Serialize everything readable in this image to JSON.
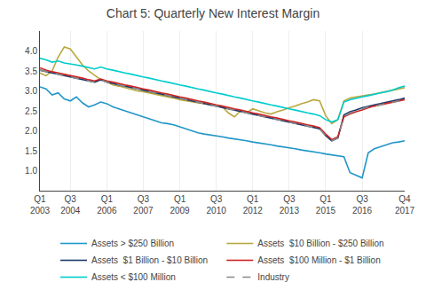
{
  "chart_data": {
    "type": "line",
    "title": "Chart 5: Quarterly New Interest Margin",
    "categories": [
      "Q1\n2003",
      null,
      null,
      null,
      null,
      "Q3\n2004",
      null,
      null,
      null,
      null,
      null,
      "Q1\n2006",
      null,
      null,
      null,
      null,
      null,
      "Q3\n2007",
      null,
      null,
      null,
      null,
      null,
      "Q1\n2009",
      null,
      null,
      null,
      null,
      null,
      "Q3\n2010",
      null,
      null,
      null,
      null,
      null,
      "Q1\n2012",
      null,
      null,
      null,
      null,
      null,
      "Q3\n2013",
      null,
      null,
      null,
      null,
      null,
      "Q1\n2015",
      null,
      null,
      null,
      null,
      null,
      "Q3\n2016",
      null,
      null,
      null,
      null,
      null,
      null,
      "Q4\n2017"
    ],
    "series": [
      {
        "name": "Assets > $250 Billion",
        "color": "#2196c8",
        "line_style": "solid",
        "values": [
          3.1,
          3.05,
          2.9,
          2.95,
          2.8,
          2.75,
          2.85,
          2.7,
          2.6,
          2.65,
          2.72,
          2.68,
          2.6,
          2.55,
          2.5,
          2.45,
          2.4,
          2.35,
          2.3,
          2.25,
          2.2,
          2.18,
          2.15,
          2.1,
          2.05,
          2.0,
          1.95,
          1.92,
          1.9,
          1.88,
          1.85,
          1.82,
          1.8,
          1.78,
          1.75,
          1.72,
          1.7,
          1.68,
          1.65,
          1.62,
          1.6,
          1.58,
          1.55,
          1.52,
          1.5,
          1.48,
          1.45,
          1.42,
          1.4,
          1.38,
          1.35,
          0.95,
          0.88,
          0.82,
          1.45,
          1.55,
          1.6,
          1.65,
          1.7,
          1.72,
          1.75
        ]
      },
      {
        "name": "Assets  $10 Billion - $250 Billion",
        "color": "#b8a840",
        "line_style": "solid",
        "values": [
          3.45,
          3.38,
          3.5,
          3.85,
          4.1,
          4.05,
          3.85,
          3.65,
          3.5,
          3.38,
          3.28,
          3.22,
          3.15,
          3.12,
          3.08,
          3.05,
          3.0,
          2.98,
          2.95,
          2.92,
          2.88,
          2.85,
          2.82,
          2.78,
          2.75,
          2.72,
          2.7,
          2.68,
          2.65,
          2.62,
          2.6,
          2.45,
          2.35,
          2.5,
          2.45,
          2.55,
          2.5,
          2.45,
          2.42,
          2.48,
          2.52,
          2.58,
          2.62,
          2.68,
          2.72,
          2.78,
          2.75,
          2.38,
          2.18,
          2.28,
          2.75,
          2.82,
          2.85,
          2.88,
          2.9,
          2.92,
          2.95,
          2.98,
          3.02,
          3.05,
          3.08
        ]
      },
      {
        "name": "Assets  $1 Billion - $10 Billion",
        "color": "#1a3a6b",
        "line_style": "solid",
        "values": [
          3.52,
          3.48,
          3.45,
          3.42,
          3.38,
          3.35,
          3.32,
          3.28,
          3.25,
          3.22,
          3.28,
          3.22,
          3.18,
          3.15,
          3.12,
          3.08,
          3.05,
          3.02,
          2.98,
          2.95,
          2.92,
          2.88,
          2.85,
          2.82,
          2.78,
          2.75,
          2.72,
          2.68,
          2.65,
          2.62,
          2.58,
          2.55,
          2.52,
          2.48,
          2.45,
          2.42,
          2.38,
          2.35,
          2.32,
          2.28,
          2.25,
          2.22,
          2.18,
          2.15,
          2.12,
          2.08,
          2.05,
          1.88,
          1.75,
          1.82,
          2.4,
          2.48,
          2.52,
          2.58,
          2.62,
          2.65,
          2.68,
          2.72,
          2.75,
          2.78,
          2.82
        ]
      },
      {
        "name": "Assets  $100 Million - $1 Billion",
        "color": "#cc2222",
        "line_style": "solid",
        "values": [
          3.58,
          3.52,
          3.48,
          3.45,
          3.42,
          3.38,
          3.35,
          3.32,
          3.28,
          3.25,
          3.3,
          3.25,
          3.22,
          3.18,
          3.15,
          3.12,
          3.08,
          3.05,
          3.02,
          2.98,
          2.95,
          2.92,
          2.88,
          2.85,
          2.82,
          2.78,
          2.75,
          2.72,
          2.68,
          2.65,
          2.62,
          2.58,
          2.55,
          2.52,
          2.48,
          2.45,
          2.42,
          2.38,
          2.35,
          2.32,
          2.28,
          2.25,
          2.22,
          2.18,
          2.15,
          2.12,
          2.08,
          1.92,
          1.78,
          1.85,
          2.35,
          2.42,
          2.48,
          2.52,
          2.58,
          2.62,
          2.65,
          2.68,
          2.72,
          2.75,
          2.78
        ]
      },
      {
        "name": "Assets < $100 Million",
        "color": "#00cccc",
        "line_style": "solid",
        "values": [
          3.82,
          3.78,
          3.72,
          3.75,
          3.7,
          3.68,
          3.65,
          3.62,
          3.58,
          3.55,
          3.6,
          3.55,
          3.52,
          3.48,
          3.45,
          3.42,
          3.38,
          3.35,
          3.32,
          3.28,
          3.25,
          3.22,
          3.18,
          3.15,
          3.12,
          3.08,
          3.05,
          3.02,
          2.98,
          2.95,
          2.92,
          2.88,
          2.85,
          2.82,
          2.78,
          2.75,
          2.72,
          2.68,
          2.65,
          2.62,
          2.58,
          2.55,
          2.52,
          2.48,
          2.45,
          2.42,
          2.38,
          2.28,
          2.22,
          2.28,
          2.72,
          2.78,
          2.82,
          2.85,
          2.88,
          2.92,
          2.95,
          2.98,
          3.02,
          3.08,
          3.12
        ]
      },
      {
        "name": "Industry",
        "color": "#888888",
        "line_style": "dashed",
        "values": [
          3.52,
          3.48,
          3.45,
          3.42,
          3.38,
          3.35,
          3.32,
          3.28,
          3.25,
          3.22,
          3.28,
          3.22,
          3.18,
          3.15,
          3.12,
          3.08,
          3.05,
          3.02,
          2.98,
          2.95,
          2.92,
          2.88,
          2.85,
          2.82,
          2.78,
          2.75,
          2.72,
          2.68,
          2.65,
          2.62,
          2.58,
          2.55,
          2.52,
          2.48,
          2.45,
          2.42,
          2.38,
          2.35,
          2.32,
          2.28,
          2.25,
          2.22,
          2.18,
          2.15,
          2.12,
          2.08,
          2.05,
          1.88,
          1.75,
          1.82,
          2.35,
          2.45,
          2.5,
          2.55,
          2.6,
          2.62,
          2.65,
          2.68,
          2.72,
          2.75,
          2.78
        ]
      }
    ],
    "ylim": [
      0.5,
      4.5
    ],
    "yticks": [
      {
        "value": 1.0,
        "label": "1.0"
      },
      1.5,
      {
        "value": 2.0,
        "label": "2.0"
      },
      2.5,
      {
        "value": 3.0,
        "label": "3.0"
      },
      3.5,
      {
        "value": 4.0,
        "label": "4.0"
      }
    ],
    "grid": "x",
    "legend": "bottom"
  }
}
